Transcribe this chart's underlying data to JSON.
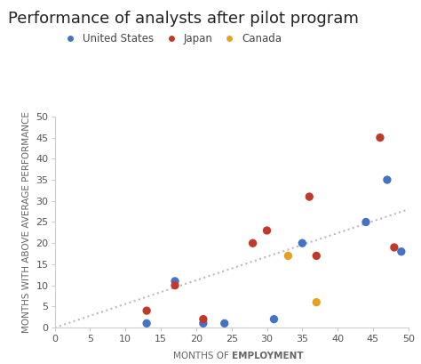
{
  "title": "Performance of analysts after pilot program",
  "xlabel_normal": "MONTHS OF ",
  "xlabel_bold": "EMPLOYMENT",
  "ylabel": "MONTHS WITH ABOVE AVERAGE PERFORMANCE",
  "xlim": [
    0,
    50
  ],
  "ylim": [
    0,
    50
  ],
  "xticks": [
    0,
    5,
    10,
    15,
    20,
    25,
    30,
    35,
    40,
    45,
    50
  ],
  "yticks": [
    0,
    5,
    10,
    15,
    20,
    25,
    30,
    35,
    40,
    45,
    50
  ],
  "background_color": "#ffffff",
  "plot_bg_color": "#ffffff",
  "series": {
    "United States": {
      "color": "#4472c4",
      "points": [
        [
          13,
          1
        ],
        [
          17,
          11
        ],
        [
          21,
          1
        ],
        [
          24,
          1
        ],
        [
          31,
          2
        ],
        [
          35,
          20
        ],
        [
          44,
          25
        ],
        [
          47,
          35
        ],
        [
          49,
          18
        ]
      ]
    },
    "Japan": {
      "color": "#c0392b",
      "points": [
        [
          13,
          4
        ],
        [
          17,
          10
        ],
        [
          21,
          2
        ],
        [
          28,
          20
        ],
        [
          30,
          23
        ],
        [
          36,
          31
        ],
        [
          37,
          17
        ],
        [
          46,
          45
        ],
        [
          48,
          19
        ]
      ]
    },
    "Canada": {
      "color": "#e8a020",
      "points": [
        [
          33,
          17
        ],
        [
          37,
          6
        ]
      ]
    }
  },
  "trendline": {
    "x": [
      0,
      50
    ],
    "y": [
      0,
      28
    ],
    "color": "#bbbbbb",
    "linestyle": "dotted",
    "linewidth": 1.5
  },
  "title_fontsize": 13,
  "legend_fontsize": 8.5,
  "axis_label_fontsize": 7.5,
  "tick_fontsize": 8,
  "dot_size": 45
}
